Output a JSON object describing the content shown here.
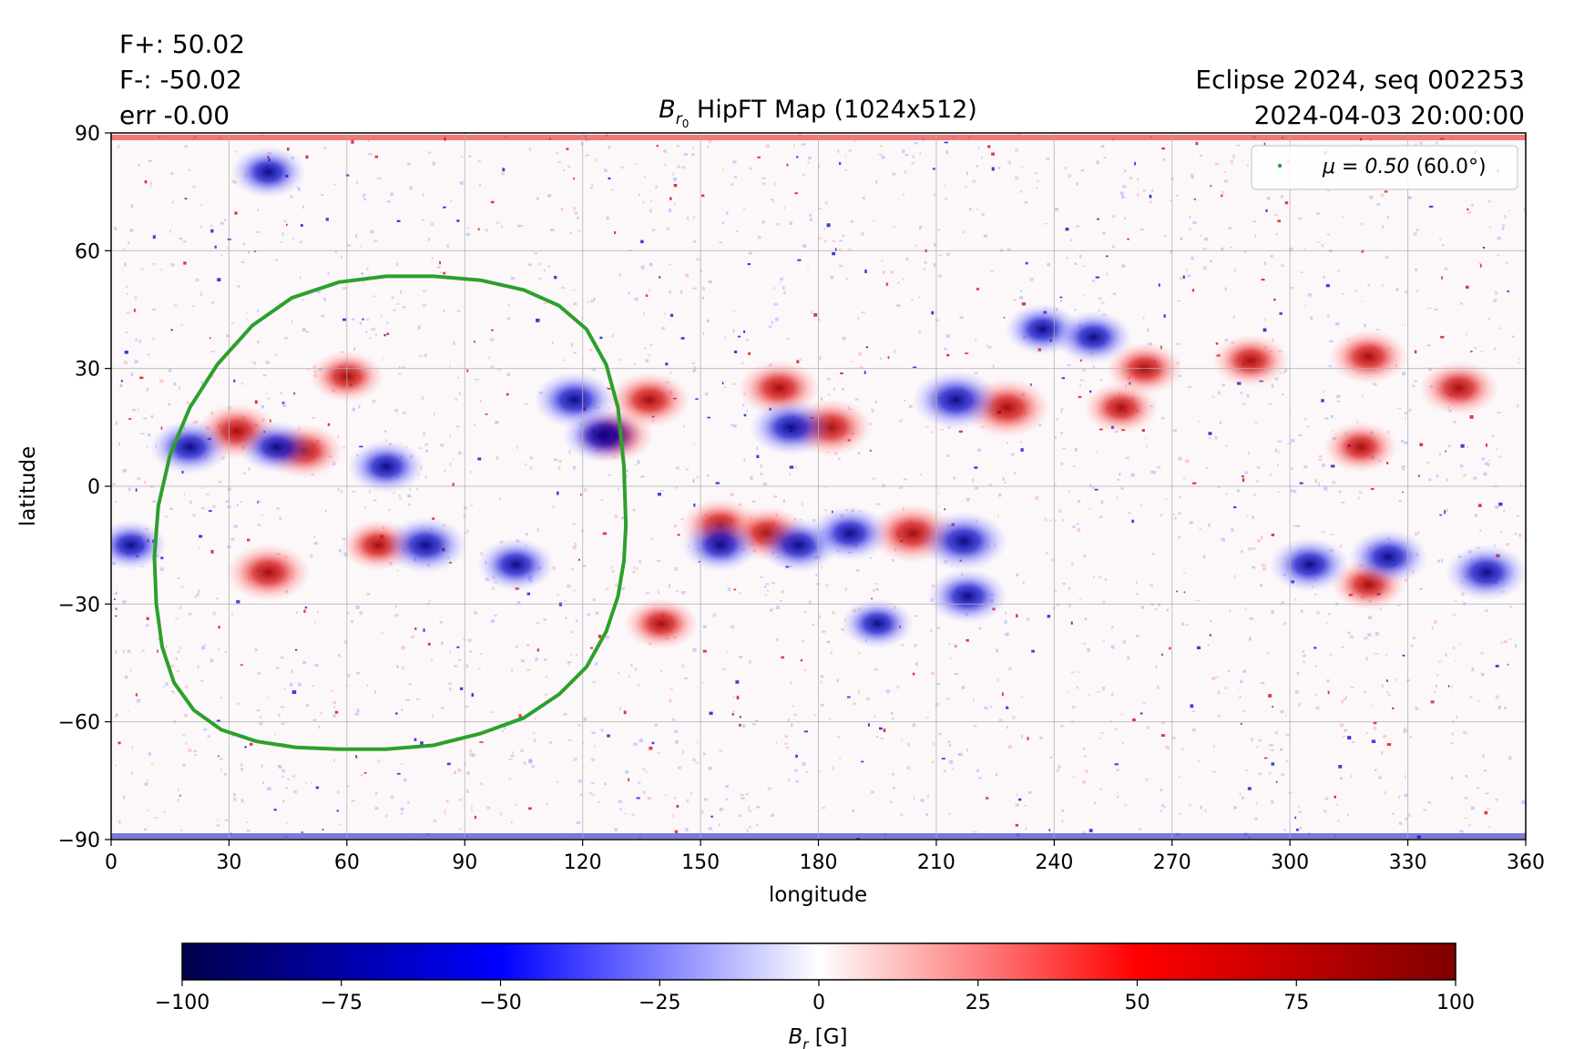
{
  "info": {
    "fplus": "F+: 50.02",
    "fminus": "F-: -50.02",
    "err": "err -0.00",
    "event": "Eclipse 2024, seq 002253",
    "datetime": "2024-04-03 20:00:00"
  },
  "chart_data": {
    "type": "heatmap",
    "title_main": "B",
    "title_sub": "r",
    "title_subsub": "0",
    "title_rest": " HipFT Map (1024x512)",
    "xlabel": "longitude",
    "ylabel": "latitude",
    "xlim": [
      0,
      360
    ],
    "ylim": [
      -90,
      90
    ],
    "xticks": [
      "0",
      "30",
      "60",
      "90",
      "120",
      "150",
      "180",
      "210",
      "240",
      "270",
      "300",
      "330",
      "360"
    ],
    "yticks": [
      "90",
      "60",
      "30",
      "0",
      "−30",
      "−60",
      "−90"
    ],
    "grid": true,
    "legend": {
      "placement": "top-right",
      "label_math": "μ = 0.50",
      "label_rest": " (60.0°)",
      "color": "#2ca02c"
    },
    "mu_contour": {
      "name": "μ = 0.50 (60.0°)",
      "lon": [
        131,
        130.5,
        129,
        126,
        121,
        114,
        105,
        94,
        82,
        70,
        58,
        46,
        36,
        27,
        20,
        15,
        12,
        11,
        11.5,
        13,
        16,
        21,
        28,
        37,
        47,
        58,
        70,
        82,
        94,
        105,
        114,
        121,
        126,
        129,
        130.5,
        131
      ],
      "lat": [
        -10,
        5,
        20,
        31,
        40,
        46,
        50,
        52.5,
        53.5,
        53.5,
        52,
        48,
        41,
        31,
        20,
        8,
        -5,
        -18,
        -30,
        -41,
        -50,
        -57,
        -62,
        -65,
        -66.5,
        -67,
        -67,
        -66,
        -63,
        -59,
        -53,
        -46,
        -37,
        -28,
        -19,
        -10
      ],
      "color": "#2ca02c"
    },
    "regions": [
      {
        "lon": 32,
        "lat": 14,
        "polarity": "positive",
        "strength": 85
      },
      {
        "lon": 40,
        "lat": -22,
        "polarity": "positive",
        "strength": 90
      },
      {
        "lon": 49,
        "lat": 9,
        "polarity": "positive",
        "strength": 80
      },
      {
        "lon": 60,
        "lat": 28,
        "polarity": "positive",
        "strength": 70
      },
      {
        "lon": 68,
        "lat": -15,
        "polarity": "positive",
        "strength": 70
      },
      {
        "lon": 128,
        "lat": 13,
        "polarity": "positive",
        "strength": 80
      },
      {
        "lon": 137,
        "lat": 22,
        "polarity": "positive",
        "strength": 85
      },
      {
        "lon": 140,
        "lat": -35,
        "polarity": "positive",
        "strength": 70
      },
      {
        "lon": 155,
        "lat": -10,
        "polarity": "positive",
        "strength": 80
      },
      {
        "lon": 167,
        "lat": -12,
        "polarity": "positive",
        "strength": 80
      },
      {
        "lon": 170,
        "lat": 25,
        "polarity": "positive",
        "strength": 85
      },
      {
        "lon": 183,
        "lat": 15,
        "polarity": "positive",
        "strength": 90
      },
      {
        "lon": 204,
        "lat": -12,
        "polarity": "positive",
        "strength": 95
      },
      {
        "lon": 228,
        "lat": 20,
        "polarity": "positive",
        "strength": 95
      },
      {
        "lon": 257,
        "lat": 20,
        "polarity": "positive",
        "strength": 70
      },
      {
        "lon": 263,
        "lat": 30,
        "polarity": "positive",
        "strength": 75
      },
      {
        "lon": 290,
        "lat": 32,
        "polarity": "positive",
        "strength": 75
      },
      {
        "lon": 320,
        "lat": 33,
        "polarity": "positive",
        "strength": 80
      },
      {
        "lon": 343,
        "lat": 25,
        "polarity": "positive",
        "strength": 80
      },
      {
        "lon": 318,
        "lat": 10,
        "polarity": "positive",
        "strength": 70
      },
      {
        "lon": 320,
        "lat": -25,
        "polarity": "positive",
        "strength": 70
      },
      {
        "lon": 20,
        "lat": 10,
        "polarity": "negative",
        "strength": 80
      },
      {
        "lon": 42,
        "lat": 10,
        "polarity": "negative",
        "strength": 70
      },
      {
        "lon": 70,
        "lat": 5,
        "polarity": "negative",
        "strength": 75
      },
      {
        "lon": 80,
        "lat": -15,
        "polarity": "negative",
        "strength": 85
      },
      {
        "lon": 103,
        "lat": -20,
        "polarity": "negative",
        "strength": 75
      },
      {
        "lon": 118,
        "lat": 22,
        "polarity": "negative",
        "strength": 85
      },
      {
        "lon": 125,
        "lat": 13,
        "polarity": "negative",
        "strength": 80
      },
      {
        "lon": 155,
        "lat": -15,
        "polarity": "negative",
        "strength": 75
      },
      {
        "lon": 173,
        "lat": 15,
        "polarity": "negative",
        "strength": 85
      },
      {
        "lon": 175,
        "lat": -15,
        "polarity": "negative",
        "strength": 80
      },
      {
        "lon": 188,
        "lat": -12,
        "polarity": "negative",
        "strength": 80
      },
      {
        "lon": 215,
        "lat": 22,
        "polarity": "negative",
        "strength": 95
      },
      {
        "lon": 217,
        "lat": -14,
        "polarity": "negative",
        "strength": 95
      },
      {
        "lon": 218,
        "lat": -28,
        "polarity": "negative",
        "strength": 80
      },
      {
        "lon": 237,
        "lat": 40,
        "polarity": "negative",
        "strength": 70
      },
      {
        "lon": 250,
        "lat": 38,
        "polarity": "negative",
        "strength": 75
      },
      {
        "lon": 195,
        "lat": -35,
        "polarity": "negative",
        "strength": 65
      },
      {
        "lon": 305,
        "lat": -20,
        "polarity": "negative",
        "strength": 80
      },
      {
        "lon": 325,
        "lat": -18,
        "polarity": "negative",
        "strength": 80
      },
      {
        "lon": 350,
        "lat": -22,
        "polarity": "negative",
        "strength": 85
      },
      {
        "lon": 40,
        "lat": 80,
        "polarity": "negative",
        "strength": 70
      },
      {
        "lon": 5,
        "lat": -15,
        "polarity": "negative",
        "strength": 65
      }
    ],
    "colorbar": {
      "colormap": "seismic",
      "vmin": -100,
      "vmax": 100,
      "ticks": [
        "−100",
        "−75",
        "−50",
        "−25",
        "0",
        "25",
        "50",
        "75",
        "100"
      ],
      "label_main": "B",
      "label_sub": "r",
      "label_unit": " [G]",
      "stops": [
        "#00004c",
        "#0000ff",
        "#ffffff",
        "#ff0000",
        "#7f0000"
      ]
    }
  }
}
